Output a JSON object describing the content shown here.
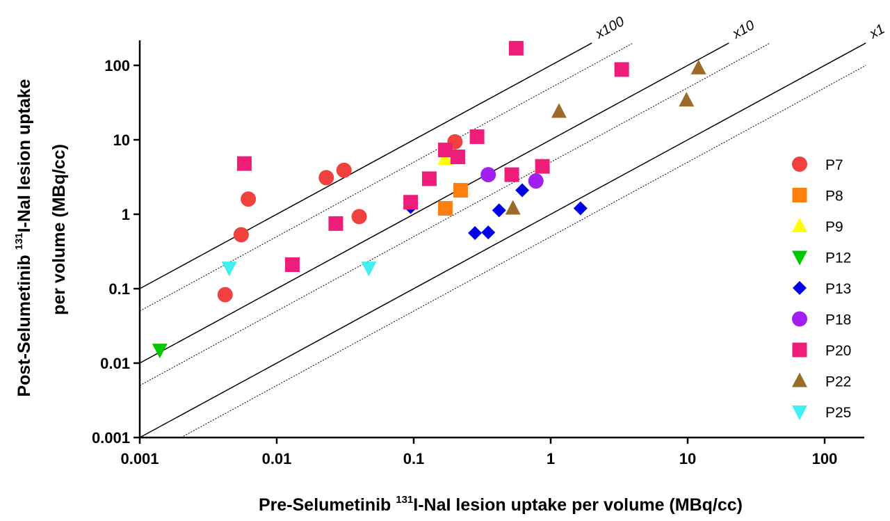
{
  "chart_data": {
    "type": "scatter",
    "xlabel_pre": "Pre-Selumetinib ",
    "xlabel_sup": "131",
    "xlabel_post": "I-NaI lesion uptake per volume (MBq/cc)",
    "ylabel_line1_pre": "Post-Selumetinib ",
    "ylabel_line1_sup": "131",
    "ylabel_line1_post": "I-NaI lesion uptake",
    "ylabel_line2": "per volume (MBq/cc)",
    "x_scale": "log",
    "y_scale": "log",
    "xlim": [
      0.001,
      200
    ],
    "ylim": [
      0.001,
      200
    ],
    "x_ticks": [
      {
        "value": 0.001,
        "label": "0.001"
      },
      {
        "value": 0.01,
        "label": "0.01"
      },
      {
        "value": 0.1,
        "label": "0.1"
      },
      {
        "value": 1,
        "label": "1"
      },
      {
        "value": 10,
        "label": "10"
      },
      {
        "value": 100,
        "label": "100"
      }
    ],
    "y_ticks": [
      {
        "value": 0.001,
        "label": "0.001"
      },
      {
        "value": 0.01,
        "label": "0.01"
      },
      {
        "value": 0.1,
        "label": "0.1"
      },
      {
        "value": 1,
        "label": "1"
      },
      {
        "value": 10,
        "label": "10"
      },
      {
        "value": 100,
        "label": "100"
      }
    ],
    "grid": false,
    "legend_position": "right",
    "reference_lines": [
      {
        "label": "x100",
        "factor": 100,
        "style": "solid"
      },
      {
        "label": "",
        "factor": 50,
        "style": "dotted"
      },
      {
        "label": "x10",
        "factor": 10,
        "style": "solid"
      },
      {
        "label": "",
        "factor": 5,
        "style": "dotted"
      },
      {
        "label": "x1",
        "factor": 1,
        "style": "solid"
      },
      {
        "label": "",
        "factor": 0.5,
        "style": "dotted"
      }
    ],
    "series": [
      {
        "name": "P7",
        "marker": "circle",
        "color": "#f0413f",
        "points": [
          [
            0.0042,
            0.083
          ],
          [
            0.0055,
            0.53
          ],
          [
            0.0062,
            1.6
          ],
          [
            0.023,
            3.1
          ],
          [
            0.031,
            3.9
          ],
          [
            0.04,
            0.93
          ],
          [
            0.2,
            9.4
          ]
        ]
      },
      {
        "name": "P8",
        "marker": "square",
        "color": "#ff7f0e",
        "points": [
          [
            0.17,
            1.2
          ],
          [
            0.22,
            2.1
          ]
        ]
      },
      {
        "name": "P9",
        "marker": "triangle-up",
        "color": "#ffff00",
        "points": [
          [
            0.17,
            5.6
          ]
        ]
      },
      {
        "name": "P12",
        "marker": "triangle-down",
        "color": "#00c800",
        "points": [
          [
            0.0014,
            0.015
          ]
        ]
      },
      {
        "name": "P13",
        "marker": "diamond",
        "color": "#0000e6",
        "points": [
          [
            0.095,
            1.25
          ],
          [
            0.28,
            0.56
          ],
          [
            0.35,
            0.57
          ],
          [
            0.42,
            1.13
          ],
          [
            0.62,
            2.1
          ],
          [
            1.65,
            1.2
          ]
        ]
      },
      {
        "name": "P18",
        "marker": "circle",
        "color": "#a020f0",
        "points": [
          [
            0.35,
            3.4
          ],
          [
            0.78,
            2.8
          ]
        ]
      },
      {
        "name": "P20",
        "marker": "square",
        "color": "#ef1d7a",
        "points": [
          [
            0.0058,
            4.8
          ],
          [
            0.013,
            0.21
          ],
          [
            0.027,
            0.75
          ],
          [
            0.095,
            1.45
          ],
          [
            0.13,
            3.0
          ],
          [
            0.17,
            7.3
          ],
          [
            0.21,
            5.9
          ],
          [
            0.29,
            11.0
          ],
          [
            0.52,
            3.4
          ],
          [
            0.56,
            170
          ],
          [
            0.87,
            4.4
          ],
          [
            3.3,
            88
          ]
        ]
      },
      {
        "name": "P22",
        "marker": "triangle-up",
        "color": "#9b6b2a",
        "points": [
          [
            0.53,
            1.2
          ],
          [
            1.15,
            24
          ],
          [
            9.8,
            34
          ],
          [
            12,
            92
          ]
        ]
      },
      {
        "name": "P25",
        "marker": "triangle-down",
        "color": "#40f0f0",
        "points": [
          [
            0.0045,
            0.19
          ],
          [
            0.047,
            0.19
          ]
        ]
      }
    ]
  }
}
